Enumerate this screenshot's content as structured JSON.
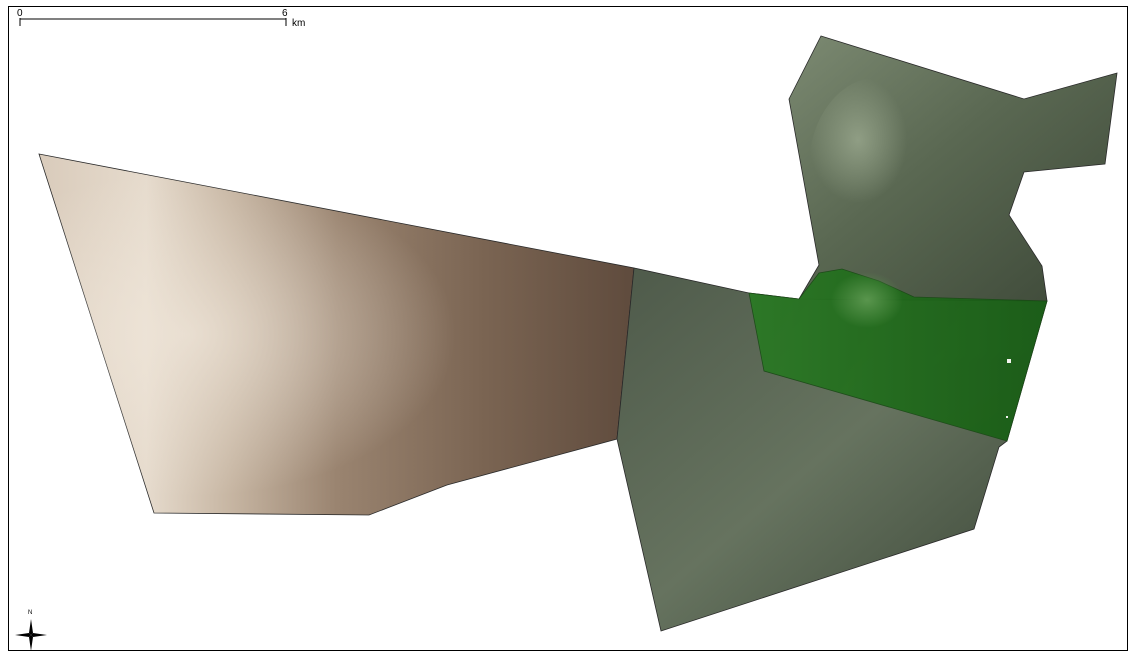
{
  "scale_bar": {
    "start_label": "0",
    "end_label": "6",
    "unit": "km"
  },
  "north_arrow": {
    "label": "N"
  },
  "colors": {
    "frame": "#000000",
    "tan_region": "#b6a28c",
    "brown_region": "#6e5848",
    "dark_green_region": "#4c5a48",
    "bright_green_highlight": "#1f6a1a",
    "outline": "#2a2a2a"
  }
}
